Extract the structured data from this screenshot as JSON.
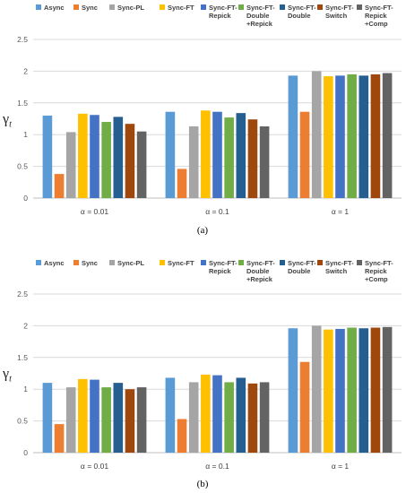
{
  "chart_data": [
    {
      "type": "bar",
      "ylabel": "γt",
      "ylabel_main": "γ",
      "ylabel_sub": "t",
      "ylim": [
        0,
        2.5
      ],
      "yticks": [
        0,
        0.5,
        1,
        1.5,
        2,
        2.5
      ],
      "ytick_labels": [
        "0",
        "0.5",
        "1",
        "1.5",
        "2",
        "2.5"
      ],
      "grid": true,
      "legend_position": "top",
      "caption": "(a)",
      "categories": [
        "α = 0.01",
        "α = 0.1",
        "α = 1"
      ],
      "series": [
        {
          "name": "Async",
          "legend": [
            "Async"
          ],
          "color": "#5b9bd5",
          "values": [
            1.3,
            1.36,
            1.93
          ]
        },
        {
          "name": "Sync",
          "legend": [
            "Sync"
          ],
          "color": "#ed7d31",
          "values": [
            0.38,
            0.46,
            1.36
          ]
        },
        {
          "name": "Sync-PL",
          "legend": [
            "Sync-PL"
          ],
          "color": "#a5a5a5",
          "values": [
            1.04,
            1.13,
            2.0
          ]
        },
        {
          "name": "Sync-FT",
          "legend": [
            "Sync-FT"
          ],
          "color": "#ffc000",
          "values": [
            1.33,
            1.38,
            1.92
          ]
        },
        {
          "name": "Sync-FT-Repick",
          "legend": [
            "Sync-FT-",
            "Repick"
          ],
          "color": "#4472c4",
          "values": [
            1.31,
            1.36,
            1.93
          ]
        },
        {
          "name": "Sync-FT-Double+Repick",
          "legend": [
            "Sync-FT-",
            "Double",
            "+Repick"
          ],
          "color": "#70ad47",
          "values": [
            1.2,
            1.27,
            1.95
          ]
        },
        {
          "name": "Sync-FT-Double",
          "legend": [
            "Sync-FT-",
            "Double"
          ],
          "color": "#255e91",
          "values": [
            1.28,
            1.34,
            1.93
          ]
        },
        {
          "name": "Sync-FT-Switch",
          "legend": [
            "Sync-FT-",
            "Switch"
          ],
          "color": "#9e480e",
          "values": [
            1.17,
            1.24,
            1.95
          ]
        },
        {
          "name": "Sync-FT-Repick+Comp",
          "legend": [
            "Sync-FT-",
            "Repick",
            "+Comp"
          ],
          "color": "#636363",
          "values": [
            1.05,
            1.13,
            1.97
          ]
        }
      ]
    },
    {
      "type": "bar",
      "ylabel": "γt",
      "ylabel_main": "γ",
      "ylabel_sub": "t",
      "ylim": [
        0,
        2.5
      ],
      "yticks": [
        0,
        0.5,
        1,
        1.5,
        2,
        2.5
      ],
      "ytick_labels": [
        "0",
        "0.5",
        "1",
        "1.5",
        "2",
        "2.5"
      ],
      "grid": true,
      "legend_position": "top",
      "caption": "(b)",
      "categories": [
        "α = 0.01",
        "α = 0.1",
        "α = 1"
      ],
      "series": [
        {
          "name": "Async",
          "legend": [
            "Async"
          ],
          "color": "#5b9bd5",
          "values": [
            1.1,
            1.18,
            1.96
          ]
        },
        {
          "name": "Sync",
          "legend": [
            "Sync"
          ],
          "color": "#ed7d31",
          "values": [
            0.45,
            0.53,
            1.43
          ]
        },
        {
          "name": "Sync-PL",
          "legend": [
            "Sync-PL"
          ],
          "color": "#a5a5a5",
          "values": [
            1.03,
            1.11,
            2.0
          ]
        },
        {
          "name": "Sync-FT",
          "legend": [
            "Sync-FT"
          ],
          "color": "#ffc000",
          "values": [
            1.16,
            1.23,
            1.94
          ]
        },
        {
          "name": "Sync-FT-Repick",
          "legend": [
            "Sync-FT-",
            "Repick"
          ],
          "color": "#4472c4",
          "values": [
            1.15,
            1.22,
            1.95
          ]
        },
        {
          "name": "Sync-FT-Double+Repick",
          "legend": [
            "Sync-FT-",
            "Double",
            "+Repick"
          ],
          "color": "#70ad47",
          "values": [
            1.03,
            1.11,
            1.97
          ]
        },
        {
          "name": "Sync-FT-Double",
          "legend": [
            "Sync-FT-",
            "Double"
          ],
          "color": "#255e91",
          "values": [
            1.1,
            1.18,
            1.96
          ]
        },
        {
          "name": "Sync-FT-Switch",
          "legend": [
            "Sync-FT-",
            "Switch"
          ],
          "color": "#9e480e",
          "values": [
            1.0,
            1.09,
            1.97
          ]
        },
        {
          "name": "Sync-FT-Repick+Comp",
          "legend": [
            "Sync-FT-",
            "Repick",
            "+Comp"
          ],
          "color": "#636363",
          "values": [
            1.03,
            1.11,
            1.98
          ]
        }
      ]
    }
  ]
}
